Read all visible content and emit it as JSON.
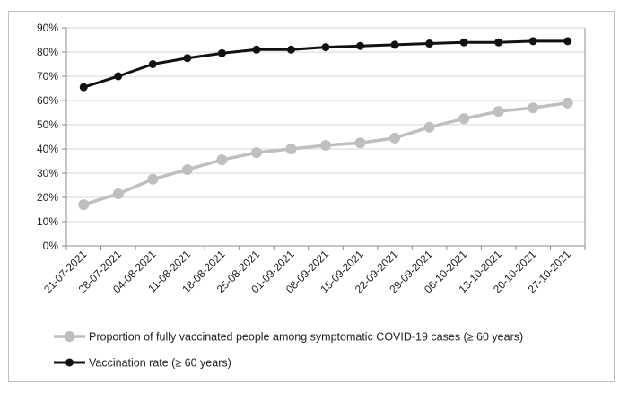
{
  "chart_data": {
    "type": "line",
    "categories": [
      "21-07-2021",
      "28-07-2021",
      "04-08-2021",
      "11-08-2021",
      "18-08-2021",
      "25-08-2021",
      "01-09-2021",
      "08-09-2021",
      "15-09-2021",
      "22-09-2021",
      "29-09-2021",
      "06-10-2021",
      "13-10-2021",
      "20-10-2021",
      "27-10-2021"
    ],
    "series": [
      {
        "name": "Proportion of fully vaccinated people among symptomatic COVID-19 cases (≥ 60 years)",
        "color": "#bfbfbf",
        "values": [
          17,
          21.5,
          27.5,
          31.5,
          35.5,
          38.5,
          40,
          41.5,
          42.5,
          44.5,
          49,
          52.5,
          55.5,
          57,
          59
        ]
      },
      {
        "name": "Vaccination rate (≥ 60 years)",
        "color": "#111111",
        "values": [
          65.5,
          70,
          75,
          77.5,
          79.5,
          81,
          81,
          82,
          82.5,
          83,
          83.5,
          84,
          84,
          84.5,
          84.5
        ]
      }
    ],
    "yticks": [
      "0%",
      "10%",
      "20%",
      "30%",
      "40%",
      "50%",
      "60%",
      "70%",
      "80%",
      "90%"
    ],
    "ylim": [
      0,
      90
    ],
    "grid": true,
    "legend_position": "bottom"
  }
}
